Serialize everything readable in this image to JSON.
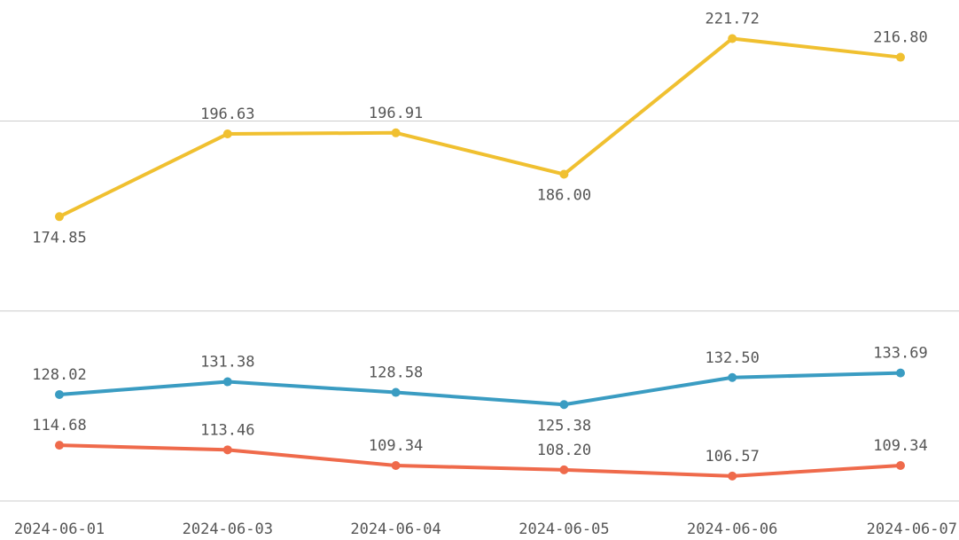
{
  "chart_data": {
    "type": "line",
    "categories": [
      "2024-06-01",
      "2024-06-03",
      "2024-06-04",
      "2024-06-05",
      "2024-06-06",
      "2024-06-07"
    ],
    "series": [
      {
        "color": "#f0c030",
        "values": [
          174.85,
          196.63,
          196.91,
          186.0,
          221.72,
          216.8
        ],
        "value_labels": [
          "174.85",
          "196.63",
          "196.91",
          "186.00",
          "221.72",
          "216.80"
        ]
      },
      {
        "color": "#3a9cc2",
        "values": [
          128.02,
          131.38,
          128.58,
          125.38,
          132.5,
          133.69
        ],
        "value_labels": [
          "128.02",
          "131.38",
          "128.58",
          "125.38",
          "132.50",
          "133.69"
        ]
      },
      {
        "color": "#ef6a4b",
        "values": [
          114.68,
          113.46,
          109.34,
          108.2,
          106.57,
          109.34
        ],
        "value_labels": [
          "114.68",
          "113.46",
          "109.34",
          "108.20",
          "106.57",
          "109.34"
        ]
      }
    ],
    "ylim": [
      100,
      230
    ],
    "yticks": [
      100,
      150,
      200
    ],
    "grid": true
  }
}
